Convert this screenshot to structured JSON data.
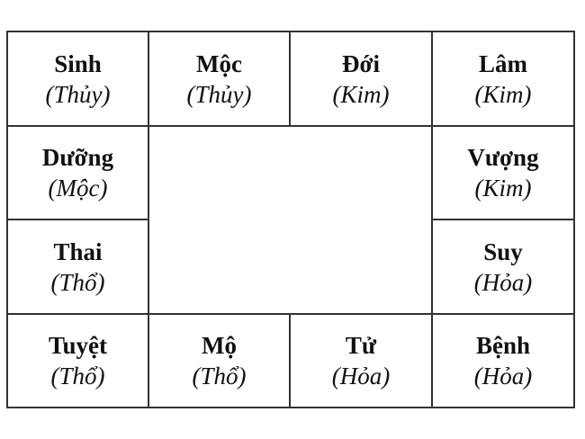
{
  "cells": [
    {
      "name": "Sinh",
      "element": "(Thủy)"
    },
    {
      "name": "Mộc",
      "element": "(Thủy)"
    },
    {
      "name": "Đới",
      "element": "(Kim)"
    },
    {
      "name": "Lâm",
      "element": "(Kim)"
    },
    {
      "name": "Vượng",
      "element": "(Kim)"
    },
    {
      "name": "Suy",
      "element": "(Hỏa)"
    },
    {
      "name": "Bệnh",
      "element": "(Hỏa)"
    },
    {
      "name": "Tử",
      "element": "(Hỏa)"
    },
    {
      "name": "Mộ",
      "element": "(Thổ)"
    },
    {
      "name": "Tuyệt",
      "element": "(Thổ)"
    },
    {
      "name": "Thai",
      "element": "(Thổ)"
    },
    {
      "name": "Dưỡng",
      "element": "(Mộc)"
    }
  ]
}
